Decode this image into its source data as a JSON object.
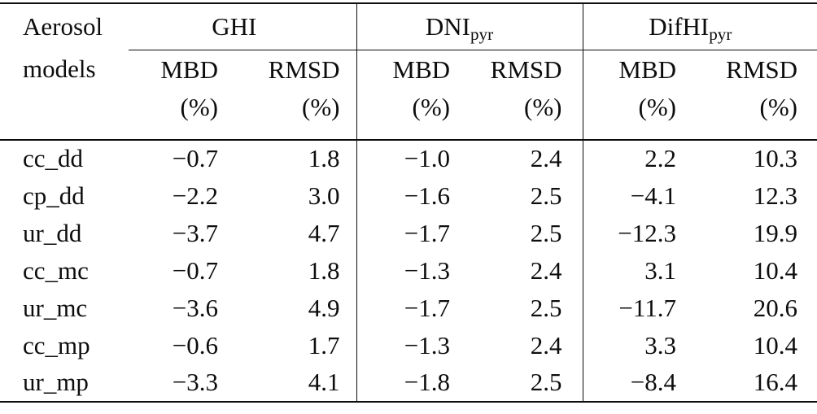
{
  "table": {
    "header": {
      "row_label_line1": "Aerosol",
      "row_label_line2": "models",
      "groups": [
        {
          "label": "GHI",
          "sub": ""
        },
        {
          "label": "DNI",
          "sub": "pyr"
        },
        {
          "label": "DifHI",
          "sub": "pyr"
        }
      ],
      "metrics": [
        "MBD",
        "RMSD",
        "MBD",
        "RMSD",
        "MBD",
        "RMSD"
      ],
      "unit": "(%)"
    },
    "rows": [
      {
        "model": "cc_dd",
        "values": [
          "−0.7",
          "1.8",
          "−1.0",
          "2.4",
          "2.2",
          "10.3"
        ]
      },
      {
        "model": "cp_dd",
        "values": [
          "−2.2",
          "3.0",
          "−1.6",
          "2.5",
          "−4.1",
          "12.3"
        ]
      },
      {
        "model": "ur_dd",
        "values": [
          "−3.7",
          "4.7",
          "−1.7",
          "2.5",
          "−12.3",
          "19.9"
        ]
      },
      {
        "model": "cc_mc",
        "values": [
          "−0.7",
          "1.8",
          "−1.3",
          "2.4",
          "3.1",
          "10.4"
        ]
      },
      {
        "model": "ur_mc",
        "values": [
          "−3.6",
          "4.9",
          "−1.7",
          "2.5",
          "−11.7",
          "20.6"
        ]
      },
      {
        "model": "cc_mp",
        "values": [
          "−0.6",
          "1.7",
          "−1.3",
          "2.4",
          "3.3",
          "10.4"
        ]
      },
      {
        "model": "ur_mp",
        "values": [
          "−3.3",
          "4.1",
          "−1.8",
          "2.5",
          "−8.4",
          "16.4"
        ]
      }
    ],
    "colors": {
      "text": "#0d0d0d",
      "rule": "#0d0d0d",
      "background": "#ffffff"
    }
  }
}
